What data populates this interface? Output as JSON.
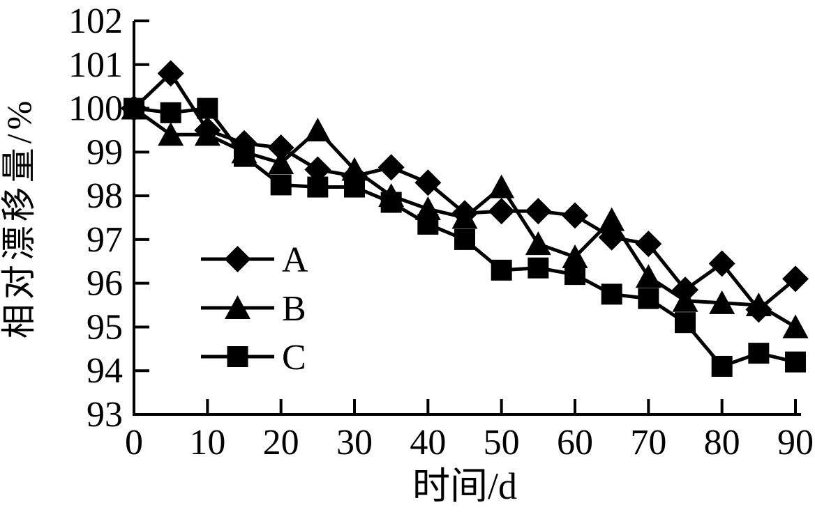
{
  "figure": {
    "background": "#ffffff",
    "ink_color": "#000000"
  },
  "chart_data": {
    "type": "line",
    "title": "",
    "xlabel": "时间/d",
    "ylabel": "相对漂移量/%",
    "x": [
      0,
      5,
      10,
      15,
      20,
      25,
      30,
      35,
      40,
      45,
      50,
      55,
      60,
      65,
      70,
      75,
      80,
      85,
      90
    ],
    "series": [
      {
        "name": "A",
        "marker": "diamond",
        "color": "#000000",
        "values": [
          100,
          100.8,
          99.5,
          99.2,
          99.1,
          98.6,
          98.45,
          98.65,
          98.3,
          97.6,
          97.65,
          97.65,
          97.55,
          97.05,
          96.9,
          95.85,
          96.45,
          95.4,
          96.1
        ]
      },
      {
        "name": "B",
        "marker": "triangle",
        "color": "#000000",
        "values": [
          100,
          99.4,
          99.4,
          99.0,
          98.75,
          99.5,
          98.6,
          98.0,
          97.7,
          97.5,
          98.2,
          96.9,
          96.6,
          97.45,
          96.15,
          95.6,
          95.55,
          95.5,
          95.0
        ]
      },
      {
        "name": "C",
        "marker": "square",
        "color": "#000000",
        "values": [
          100,
          99.9,
          100.0,
          98.9,
          98.25,
          98.2,
          98.2,
          97.85,
          97.35,
          97.0,
          96.3,
          96.35,
          96.2,
          95.75,
          95.65,
          95.1,
          94.1,
          94.4,
          94.2
        ]
      }
    ],
    "xlim": [
      0,
      90
    ],
    "ylim": [
      93,
      102
    ],
    "x_ticks": [
      0,
      10,
      20,
      30,
      40,
      50,
      60,
      70,
      80,
      90
    ],
    "y_ticks": [
      93,
      94,
      95,
      96,
      97,
      98,
      99,
      100,
      101,
      102
    ],
    "grid": false,
    "legend": {
      "position": "inside-left",
      "entries": [
        {
          "label": "A",
          "marker": "diamond"
        },
        {
          "label": "B",
          "marker": "triangle"
        },
        {
          "label": "C",
          "marker": "square"
        }
      ]
    }
  }
}
